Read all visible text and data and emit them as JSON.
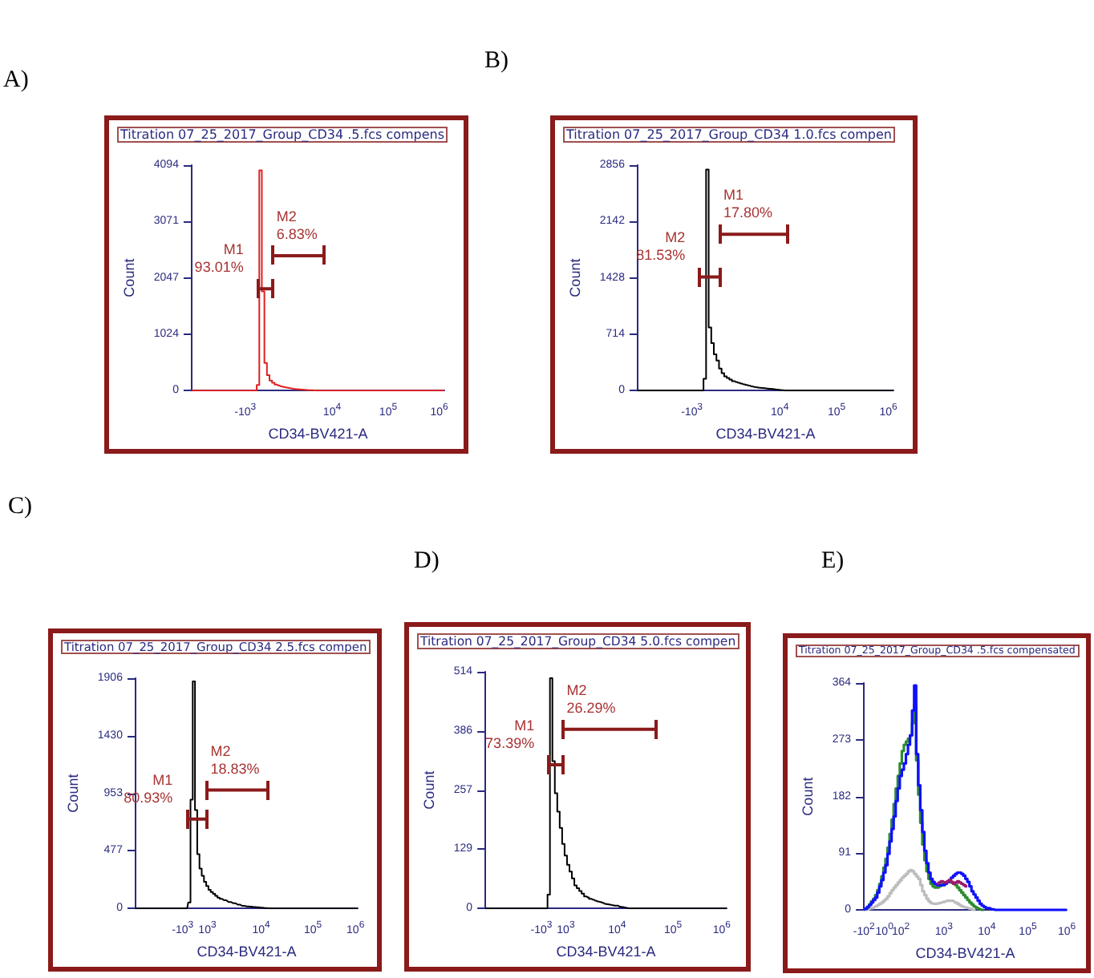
{
  "chart_data": [
    {
      "type": "step",
      "subtitle": "A)",
      "title": "Titration 07_25_2017_Group_CD34 .5.fcs compens",
      "xlabel": "CD34-BV421-A",
      "ylabel": "Count",
      "ylim": [
        0,
        4094
      ],
      "yticks": [
        0,
        1024,
        2047,
        3071,
        4094
      ],
      "categories": [
        null,
        null,
        null,
        null,
        null,
        null,
        null,
        null,
        null,
        null,
        null,
        null,
        null,
        null,
        null,
        null,
        null,
        null,
        null,
        null,
        null,
        "-10$^{3}$",
        null,
        null,
        null,
        null,
        null,
        null,
        null,
        null,
        null,
        null,
        null,
        null,
        null,
        null,
        null,
        null,
        null,
        null,
        null,
        null,
        null,
        null,
        null,
        null,
        null,
        null,
        null,
        null,
        null,
        null,
        null,
        null,
        null,
        "10$^{4}$",
        null,
        null,
        null,
        null,
        null,
        null,
        null,
        null,
        null,
        null,
        null,
        null,
        null,
        null,
        null,
        null,
        null,
        null,
        null,
        null,
        null,
        "10$^{5}$",
        null,
        null,
        null,
        null,
        null,
        null,
        null,
        null,
        null,
        null,
        null,
        null,
        null,
        null,
        null,
        null,
        null,
        null,
        null,
        "10$^{6}$",
        null,
        null
      ],
      "annotations": [
        "M1\n93.01%",
        "M2\n6.83%"
      ],
      "series": [
        {
          "color": "#e02020",
          "values": [
            0,
            0,
            0,
            0,
            0,
            0,
            0,
            0,
            0,
            0,
            0,
            0,
            0,
            0,
            0,
            0,
            0,
            0,
            0,
            0,
            0,
            0,
            0,
            0,
            0,
            0,
            100,
            4000,
            1800,
            500,
            280,
            180,
            140,
            110,
            90,
            75,
            65,
            55,
            45,
            38,
            30,
            25,
            20,
            16,
            13,
            10,
            7,
            5,
            3,
            1,
            0,
            0,
            0,
            0,
            0,
            0,
            0,
            0,
            0,
            0,
            0,
            0,
            0,
            0,
            0,
            0,
            0,
            0,
            0,
            0,
            0,
            0,
            0,
            0,
            0,
            0,
            0,
            0,
            0,
            0,
            0,
            0,
            0,
            0,
            0,
            0,
            0,
            0,
            0,
            0,
            0,
            0,
            0,
            0,
            0,
            0,
            0,
            0,
            0,
            0
          ]
        },
        {
          "type": "line",
          "color": "#8b1a1a",
          "values": [
            null,
            null,
            null,
            null,
            null,
            null,
            null,
            null,
            null,
            null,
            null,
            null,
            null,
            null,
            null,
            null,
            null,
            null,
            null,
            null,
            null,
            null,
            null,
            null,
            null,
            null,
            1850,
            1850,
            1850,
            1850,
            1850,
            1850,
            1850,
            null,
            null,
            null,
            null,
            null,
            null,
            null,
            null,
            null,
            null,
            null,
            null,
            null,
            null,
            null,
            null,
            null,
            null,
            null,
            null,
            null,
            null,
            null,
            null,
            null,
            null,
            null,
            null,
            null,
            null,
            null,
            null,
            null,
            null,
            null,
            null,
            null,
            null,
            null,
            null,
            null,
            null,
            null,
            null,
            null,
            null,
            null,
            null,
            null,
            null,
            null,
            null,
            null,
            null,
            null,
            null,
            null,
            null,
            null,
            null,
            null,
            null,
            null,
            null,
            null,
            null,
            null
          ]
        },
        {
          "type": "line",
          "color": "#8b1a1a",
          "values": [
            null,
            null,
            null,
            null,
            null,
            null,
            null,
            null,
            null,
            null,
            null,
            null,
            null,
            null,
            null,
            null,
            null,
            null,
            null,
            null,
            null,
            null,
            null,
            null,
            null,
            null,
            null,
            null,
            null,
            null,
            null,
            null,
            2450,
            2450,
            2450,
            2450,
            2450,
            2450,
            2450,
            2450,
            2450,
            2450,
            2450,
            2450,
            2450,
            2450,
            2450,
            2450,
            2450,
            2450,
            2450,
            2450,
            2450,
            null,
            null,
            null,
            null,
            null,
            null,
            null,
            null,
            null,
            null,
            null,
            null,
            null,
            null,
            null,
            null,
            null,
            null,
            null,
            null,
            null,
            null,
            null,
            null,
            null,
            null,
            null,
            null,
            null,
            null,
            null,
            null,
            null,
            null,
            null,
            null,
            null,
            null,
            null,
            null,
            null,
            null,
            null,
            null,
            null,
            null,
            null
          ]
        }
      ]
    },
    {
      "type": "step",
      "subtitle": "B)",
      "title": "Titration 07_25_2017_Group_CD34 1.0.fcs compen",
      "xlabel": "CD34-BV421-A",
      "ylabel": "Count",
      "ylim": [
        0,
        2856
      ],
      "yticks": [
        0,
        714,
        1428,
        2142,
        2856
      ],
      "categories": [
        null,
        null,
        null,
        null,
        null,
        null,
        null,
        null,
        null,
        null,
        null,
        null,
        null,
        null,
        null,
        null,
        null,
        null,
        null,
        null,
        null,
        "-10$^{3}$",
        null,
        null,
        null,
        null,
        null,
        null,
        null,
        null,
        null,
        null,
        null,
        null,
        null,
        null,
        null,
        null,
        null,
        null,
        null,
        null,
        null,
        null,
        null,
        null,
        null,
        null,
        null,
        null,
        null,
        null,
        null,
        null,
        null,
        "10$^{4}$",
        null,
        null,
        null,
        null,
        null,
        null,
        null,
        null,
        null,
        null,
        null,
        null,
        null,
        null,
        null,
        null,
        null,
        null,
        null,
        null,
        null,
        "10$^{5}$",
        null,
        null,
        null,
        null,
        null,
        null,
        null,
        null,
        null,
        null,
        null,
        null,
        null,
        null,
        null,
        null,
        null,
        null,
        null,
        "10$^{6}$",
        null,
        null
      ],
      "annotations": [
        "M2\n81.53%",
        "M1\n17.80%"
      ],
      "series": [
        {
          "color": "#000000",
          "values": [
            0,
            0,
            0,
            0,
            0,
            0,
            0,
            0,
            0,
            0,
            0,
            0,
            0,
            0,
            0,
            0,
            0,
            0,
            0,
            0,
            0,
            0,
            0,
            0,
            0,
            0,
            150,
            2800,
            800,
            600,
            460,
            380,
            280,
            220,
            180,
            160,
            140,
            120,
            108,
            98,
            88,
            78,
            70,
            62,
            54,
            46,
            40,
            36,
            32,
            29,
            25,
            22,
            20,
            15,
            11,
            8,
            4,
            0,
            0,
            0,
            0,
            0,
            0,
            0,
            0,
            0,
            0,
            0,
            0,
            0,
            0,
            0,
            0,
            0,
            0,
            0,
            0,
            0,
            0,
            0,
            0,
            0,
            0,
            0,
            0,
            0,
            0,
            0,
            0,
            0,
            0,
            0,
            0,
            0,
            0,
            0,
            0,
            0,
            0,
            0
          ]
        },
        {
          "type": "line",
          "color": "#8b1a1a",
          "values": [
            null,
            null,
            null,
            null,
            null,
            null,
            null,
            null,
            null,
            null,
            null,
            null,
            null,
            null,
            null,
            null,
            null,
            null,
            null,
            null,
            null,
            null,
            null,
            null,
            1440,
            1440,
            1440,
            1440,
            1440,
            1440,
            1440,
            1440,
            1440,
            null,
            null,
            null,
            null,
            null,
            null,
            null,
            null,
            null,
            null,
            null,
            null,
            null,
            null,
            null,
            null,
            null,
            null,
            null,
            null,
            null,
            null,
            null,
            null,
            null,
            null,
            null,
            null,
            null,
            null,
            null,
            null,
            null,
            null,
            null,
            null,
            null,
            null,
            null,
            null,
            null,
            null,
            null,
            null,
            null,
            null,
            null,
            null,
            null,
            null,
            null,
            null,
            null,
            null,
            null,
            null,
            null,
            null,
            null,
            null,
            null,
            null,
            null,
            null,
            null,
            null,
            null
          ]
        },
        {
          "type": "line",
          "color": "#8b1a1a",
          "values": [
            null,
            null,
            null,
            null,
            null,
            null,
            null,
            null,
            null,
            null,
            null,
            null,
            null,
            null,
            null,
            null,
            null,
            null,
            null,
            null,
            null,
            null,
            null,
            null,
            null,
            null,
            null,
            null,
            null,
            null,
            null,
            null,
            1980,
            1980,
            1980,
            1980,
            1980,
            1980,
            1980,
            1980,
            1980,
            1980,
            1980,
            1980,
            1980,
            1980,
            1980,
            1980,
            1980,
            1980,
            1980,
            1980,
            1980,
            1980,
            1980,
            1980,
            1980,
            1980,
            1980,
            null,
            null,
            null,
            null,
            null,
            null,
            null,
            null,
            null,
            null,
            null,
            null,
            null,
            null,
            null,
            null,
            null,
            null,
            null,
            null,
            null,
            null,
            null,
            null,
            null,
            null,
            null,
            null,
            null,
            null,
            null,
            null,
            null,
            null,
            null,
            null,
            null,
            null,
            null,
            null,
            null
          ]
        }
      ]
    },
    {
      "type": "step",
      "subtitle": "C)",
      "title": "Titration 07_25_2017_Group_CD34 2.5.fcs compen",
      "xlabel": "CD34-BV421-A",
      "ylabel": "Count",
      "ylim": [
        0,
        1906
      ],
      "yticks": [
        0,
        477,
        953,
        1430,
        1906
      ],
      "categories": [
        null,
        null,
        null,
        null,
        null,
        null,
        null,
        null,
        null,
        null,
        null,
        null,
        null,
        null,
        null,
        null,
        null,
        null,
        null,
        null,
        null,
        "-10$^{3}$",
        null,
        null,
        null,
        null,
        null,
        null,
        null,
        null,
        null,
        null,
        "10$^{3}$",
        null,
        null,
        null,
        null,
        null,
        null,
        null,
        null,
        null,
        null,
        null,
        null,
        null,
        null,
        null,
        null,
        null,
        null,
        null,
        null,
        null,
        null,
        null,
        "10$^{4}$",
        null,
        null,
        null,
        null,
        null,
        null,
        null,
        null,
        null,
        null,
        null,
        null,
        null,
        null,
        null,
        null,
        null,
        null,
        null,
        null,
        null,
        null,
        "10$^{5}$",
        null,
        null,
        null,
        null,
        null,
        null,
        null,
        null,
        null,
        null,
        null,
        null,
        null,
        null,
        null,
        null,
        null,
        null,
        "10$^{6}$",
        null
      ],
      "annotations": [
        "M1\n80.93%",
        "M2\n18.83%"
      ],
      "series": [
        {
          "color": "#000000",
          "values": [
            0,
            0,
            0,
            0,
            0,
            0,
            0,
            0,
            0,
            0,
            0,
            0,
            0,
            0,
            0,
            0,
            0,
            0,
            0,
            0,
            0,
            0,
            0,
            0,
            50,
            900,
            1880,
            815,
            450,
            330,
            270,
            220,
            185,
            154,
            135,
            120,
            105,
            90,
            80,
            74,
            68,
            60,
            53,
            48,
            43,
            38,
            32,
            27,
            22,
            20,
            17,
            15,
            14,
            12,
            10,
            9,
            7,
            5,
            3,
            1,
            0,
            0,
            0,
            0,
            0,
            0,
            0,
            0,
            0,
            0,
            0,
            0,
            0,
            0,
            0,
            0,
            0,
            0,
            0,
            0,
            0,
            0,
            0,
            0,
            0,
            0,
            0,
            0,
            0,
            0,
            0,
            0,
            0,
            0,
            0,
            0,
            0,
            0,
            0,
            0
          ]
        },
        {
          "type": "line",
          "color": "#8b1a1a",
          "values": [
            null,
            null,
            null,
            null,
            null,
            null,
            null,
            null,
            null,
            null,
            null,
            null,
            null,
            null,
            null,
            null,
            null,
            null,
            null,
            null,
            null,
            null,
            null,
            740,
            740,
            740,
            740,
            740,
            740,
            740,
            740,
            740,
            740,
            null,
            null,
            null,
            null,
            null,
            null,
            null,
            null,
            null,
            null,
            null,
            null,
            null,
            null,
            null,
            null,
            null,
            null,
            null,
            null,
            null,
            null,
            null,
            null,
            null,
            null,
            null,
            null,
            null,
            null,
            null,
            null,
            null,
            null,
            null,
            null,
            null,
            null,
            null,
            null,
            null,
            null,
            null,
            null,
            null,
            null,
            null,
            null,
            null,
            null,
            null,
            null,
            null,
            null,
            null,
            null,
            null,
            null,
            null,
            null,
            null,
            null,
            null,
            null,
            null,
            null,
            null
          ]
        },
        {
          "type": "line",
          "color": "#8b1a1a",
          "values": [
            null,
            null,
            null,
            null,
            null,
            null,
            null,
            null,
            null,
            null,
            null,
            null,
            null,
            null,
            null,
            null,
            null,
            null,
            null,
            null,
            null,
            null,
            null,
            null,
            null,
            null,
            null,
            null,
            null,
            null,
            null,
            null,
            980,
            980,
            980,
            980,
            980,
            980,
            980,
            980,
            980,
            980,
            980,
            980,
            980,
            980,
            980,
            980,
            980,
            980,
            980,
            980,
            980,
            980,
            980,
            980,
            980,
            980,
            980,
            980,
            null,
            null,
            null,
            null,
            null,
            null,
            null,
            null,
            null,
            null,
            null,
            null,
            null,
            null,
            null,
            null,
            null,
            null,
            null,
            null,
            null,
            null,
            null,
            null,
            null,
            null,
            null,
            null,
            null,
            null,
            null,
            null,
            null,
            null,
            null,
            null,
            null,
            null,
            null,
            null
          ]
        }
      ]
    },
    {
      "type": "step",
      "subtitle": "D)",
      "title": "Titration 07_25_2017_Group_CD34 5.0.fcs compen",
      "xlabel": "CD34-BV421-A",
      "ylabel": "Count",
      "ylim": [
        0,
        514
      ],
      "yticks": [
        0,
        129,
        257,
        386,
        514
      ],
      "categories": [
        null,
        null,
        null,
        null,
        null,
        null,
        null,
        null,
        null,
        null,
        null,
        null,
        null,
        null,
        null,
        null,
        null,
        null,
        null,
        null,
        null,
        null,
        null,
        "-10$^{3}$",
        null,
        null,
        null,
        null,
        null,
        null,
        null,
        null,
        null,
        "10$^{3}$",
        null,
        null,
        null,
        null,
        null,
        null,
        null,
        null,
        null,
        null,
        null,
        null,
        null,
        null,
        null,
        null,
        null,
        null,
        null,
        null,
        "10$^{4}$",
        null,
        null,
        null,
        null,
        null,
        null,
        null,
        null,
        null,
        null,
        null,
        null,
        null,
        null,
        null,
        null,
        null,
        null,
        null,
        null,
        null,
        null,
        "10$^{5}$",
        null,
        null,
        null,
        null,
        null,
        null,
        null,
        null,
        null,
        null,
        null,
        null,
        null,
        null,
        null,
        null,
        null,
        null,
        null,
        "10$^{6}$",
        null,
        null
      ],
      "annotations": [
        "M1\n73.39%",
        "M2\n26.29%"
      ],
      "series": [
        {
          "color": "#000000",
          "values": [
            0,
            0,
            0,
            0,
            0,
            0,
            0,
            0,
            0,
            0,
            0,
            0,
            0,
            0,
            0,
            0,
            0,
            0,
            0,
            0,
            0,
            0,
            0,
            0,
            0,
            0,
            30,
            500,
            320,
            250,
            210,
            175,
            140,
            115,
            95,
            80,
            65,
            50,
            44,
            38,
            32,
            26,
            24,
            21,
            19,
            17,
            15,
            14,
            12,
            10,
            9,
            8,
            7,
            6,
            6,
            4,
            3,
            2,
            1,
            0,
            0,
            0,
            0,
            0,
            0,
            0,
            0,
            0,
            0,
            0,
            0,
            0,
            0,
            0,
            0,
            0,
            0,
            0,
            0,
            0,
            0,
            0,
            0,
            0,
            0,
            0,
            0,
            0,
            0,
            0,
            0,
            0,
            0,
            0,
            0,
            0,
            0,
            0,
            0,
            0
          ]
        },
        {
          "type": "line",
          "color": "#8b1a1a",
          "values": [
            null,
            null,
            null,
            null,
            null,
            null,
            null,
            null,
            null,
            null,
            null,
            null,
            null,
            null,
            null,
            null,
            null,
            null,
            null,
            null,
            null,
            null,
            null,
            null,
            null,
            null,
            312,
            312,
            312,
            312,
            312,
            312,
            312,
            null,
            null,
            null,
            null,
            null,
            null,
            null,
            null,
            null,
            null,
            null,
            null,
            null,
            null,
            null,
            null,
            null,
            null,
            null,
            null,
            null,
            null,
            null,
            null,
            null,
            null,
            null,
            null,
            null,
            null,
            null,
            null,
            null,
            null,
            null,
            null,
            null,
            null,
            null,
            null,
            null,
            null,
            null,
            null,
            null,
            null,
            null,
            null,
            null,
            null,
            null,
            null,
            null,
            null,
            null,
            null,
            null,
            null,
            null,
            null,
            null,
            null,
            null,
            null,
            null,
            null,
            null
          ]
        },
        {
          "type": "line",
          "color": "#8b1a1a",
          "values": [
            null,
            null,
            null,
            null,
            null,
            null,
            null,
            null,
            null,
            null,
            null,
            null,
            null,
            null,
            null,
            null,
            null,
            null,
            null,
            null,
            null,
            null,
            null,
            null,
            null,
            null,
            null,
            null,
            null,
            null,
            null,
            null,
            389,
            389,
            389,
            389,
            389,
            389,
            389,
            389,
            389,
            389,
            389,
            389,
            389,
            389,
            389,
            389,
            389,
            389,
            389,
            389,
            389,
            389,
            389,
            389,
            389,
            389,
            389,
            389,
            389,
            389,
            389,
            389,
            389,
            389,
            389,
            389,
            389,
            389,
            389,
            null,
            null,
            null,
            null,
            null,
            null,
            null,
            null,
            null,
            null,
            null,
            null,
            null,
            null,
            null,
            null,
            null,
            null,
            null,
            null,
            null,
            null,
            null,
            null,
            null,
            null,
            null,
            null,
            null
          ]
        }
      ]
    },
    {
      "type": "step",
      "subtitle": "E)",
      "title": "Titration 07_25_2017_Group_CD34 .5.fcs compensated",
      "xlabel": "CD34-BV421-A",
      "ylabel": "Count",
      "ylim": [
        0,
        364
      ],
      "yticks": [
        0,
        91,
        182,
        273,
        364
      ],
      "categories": [
        "-10$^{2}$",
        null,
        null,
        null,
        null,
        null,
        null,
        null,
        null,
        null,
        "10$^{0}$",
        null,
        null,
        null,
        null,
        null,
        null,
        null,
        "10$^{2}$",
        null,
        null,
        null,
        null,
        null,
        null,
        null,
        null,
        null,
        null,
        null,
        null,
        null,
        null,
        null,
        null,
        null,
        null,
        null,
        null,
        "10$^{3}$",
        null,
        null,
        null,
        null,
        null,
        null,
        null,
        null,
        null,
        null,
        null,
        null,
        null,
        null,
        null,
        null,
        null,
        null,
        null,
        null,
        "10$^{4}$",
        null,
        null,
        null,
        null,
        null,
        null,
        null,
        null,
        null,
        null,
        null,
        null,
        null,
        null,
        null,
        null,
        null,
        null,
        null,
        "10$^{5}$",
        null,
        null,
        null,
        null,
        null,
        null,
        null,
        null,
        null,
        null,
        null,
        null,
        null,
        null,
        null,
        null,
        null,
        null,
        "10$^{6}$"
      ],
      "series": [
        {
          "color": "#bdbdbd",
          "values": [
            0,
            0,
            1,
            2,
            3,
            4,
            6,
            8,
            10,
            12,
            15,
            18,
            22,
            27,
            32,
            36,
            40,
            44,
            48,
            52,
            55,
            58,
            62,
            64,
            62,
            58,
            54,
            50,
            40,
            30,
            24,
            18,
            14,
            11,
            10,
            10,
            10,
            11,
            12,
            13,
            14,
            15,
            15,
            15,
            14,
            12,
            10,
            8,
            6,
            5,
            4,
            3,
            2,
            1,
            0,
            null,
            null,
            null,
            null,
            null,
            null,
            null,
            null,
            null,
            null,
            null,
            null,
            null,
            null,
            null,
            null,
            null,
            null,
            null,
            null,
            null,
            null,
            null,
            null,
            null,
            null,
            null,
            null,
            null,
            null,
            null,
            null,
            null,
            null,
            null,
            null,
            null,
            null,
            null,
            null,
            null,
            null,
            null,
            null,
            null
          ]
        },
        {
          "color": "#2e8b2e",
          "values": [
            0,
            2,
            5,
            9,
            14,
            18,
            24,
            32,
            42,
            54,
            68,
            82,
            100,
            122,
            145,
            170,
            195,
            215,
            235,
            255,
            265,
            270,
            275,
            280,
            300,
            330,
            240,
            185,
            140,
            105,
            80,
            62,
            50,
            42,
            38,
            36,
            36,
            38,
            40,
            42,
            44,
            45,
            45,
            44,
            42,
            40,
            36,
            32,
            28,
            24,
            20,
            16,
            12,
            9,
            6,
            4,
            2,
            1,
            0,
            null,
            null,
            null,
            null,
            null,
            null,
            null,
            null,
            null,
            null,
            null,
            null,
            null,
            null,
            null,
            null,
            null,
            null,
            null,
            null,
            null,
            null,
            null,
            null,
            null,
            null,
            null,
            null,
            null,
            null,
            null,
            null,
            null,
            null,
            null,
            null,
            null,
            null,
            null,
            null,
            null
          ]
        },
        {
          "color": "#1010ff",
          "values": [
            0,
            2,
            5,
            8,
            12,
            16,
            20,
            28,
            38,
            48,
            60,
            72,
            90,
            110,
            130,
            150,
            175,
            195,
            215,
            225,
            235,
            250,
            265,
            280,
            320,
            360,
            250,
            200,
            160,
            125,
            95,
            75,
            60,
            50,
            45,
            42,
            40,
            40,
            40,
            40,
            42,
            45,
            48,
            52,
            55,
            58,
            60,
            60,
            58,
            55,
            50,
            45,
            38,
            30,
            25,
            20,
            15,
            10,
            7,
            5,
            3,
            3,
            2,
            1,
            0,
            0,
            0,
            0,
            0,
            0,
            0,
            0,
            0,
            0,
            0,
            0,
            0,
            0,
            0,
            0,
            0,
            0,
            0,
            0,
            0,
            0,
            0,
            0,
            0,
            0,
            0,
            0,
            0,
            0,
            0,
            0,
            0,
            0,
            0,
            0
          ]
        },
        {
          "color": "#9b1b6e",
          "values": [
            null,
            null,
            null,
            null,
            null,
            null,
            null,
            null,
            null,
            null,
            null,
            null,
            null,
            null,
            null,
            null,
            null,
            null,
            null,
            null,
            null,
            null,
            null,
            null,
            null,
            null,
            null,
            null,
            null,
            null,
            null,
            null,
            null,
            null,
            null,
            null,
            42,
            44,
            46,
            45,
            44,
            46,
            48,
            45,
            42,
            44,
            46,
            44,
            42,
            40,
            38,
            null,
            null,
            null,
            null,
            null,
            null,
            null,
            null,
            null,
            null,
            null,
            null,
            null,
            null,
            null,
            null,
            null,
            null,
            null,
            null,
            null,
            null,
            null,
            null,
            null,
            null,
            null,
            null,
            null,
            null,
            null,
            null,
            null,
            null,
            null,
            null,
            null,
            null,
            null,
            null,
            null,
            null,
            null,
            null,
            null,
            null,
            null,
            null,
            null
          ]
        }
      ]
    }
  ]
}
